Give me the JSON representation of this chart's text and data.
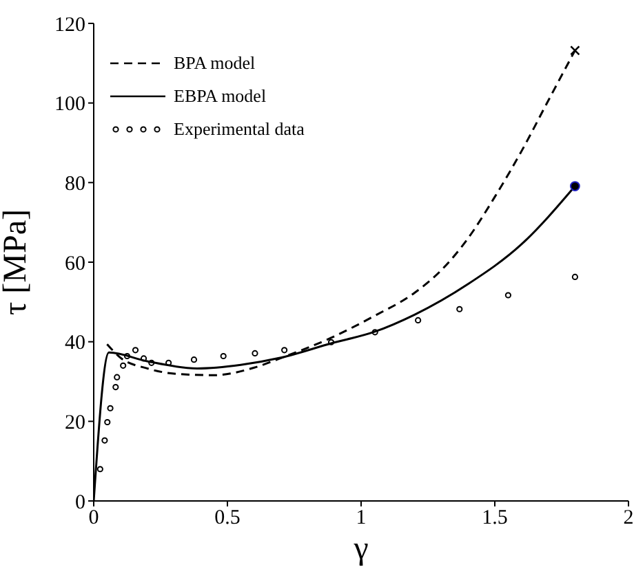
{
  "chart_data": {
    "type": "line",
    "xlabel": "γ",
    "ylabel": "τ [MPa]",
    "xlim": [
      0,
      2
    ],
    "xticks": [
      0,
      0.5,
      1,
      1.5,
      2
    ],
    "ylim": [
      0,
      120
    ],
    "yticks": [
      0,
      20,
      40,
      60,
      80,
      100,
      120
    ],
    "grid": false,
    "legend": "top left",
    "series": [
      {
        "name": "BPA model",
        "line_style": "dashed",
        "marker": "none",
        "color": "#000000",
        "x": [
          0.05,
          0.1,
          0.2,
          0.3,
          0.45,
          0.6,
          0.7,
          0.888,
          1.05,
          1.2,
          1.3,
          1.4,
          1.5,
          1.6,
          1.7,
          1.8
        ],
        "values": [
          39.4,
          36,
          33.3,
          32,
          31.6,
          33.5,
          35.9,
          41,
          46.5,
          52.3,
          58,
          66,
          76.4,
          87.9,
          100.6,
          113.2
        ]
      },
      {
        "type": "scatter",
        "marker": "cross",
        "color": "#000000",
        "x": [
          1.8
        ],
        "values": [
          113.2
        ]
      },
      {
        "name": "EBPA model",
        "line_style": "solid",
        "marker": "none",
        "color": "#000000",
        "x": [
          0,
          0.057,
          0.2,
          0.387,
          0.55,
          0.7,
          0.888,
          1.05,
          1.2,
          1.4,
          1.6,
          1.8
        ],
        "values": [
          0,
          37.3,
          35.1,
          33.3,
          34.2,
          36,
          39.6,
          42.5,
          46.8,
          54.5,
          64.5,
          79.1
        ]
      },
      {
        "type": "scatter",
        "marker": "circle",
        "color": "#000000",
        "x": [
          1.8
        ],
        "values": [
          79.1
        ]
      },
      {
        "name": "Experimental data",
        "type": "scatter",
        "marker": "circle",
        "color": "#000000",
        "x": [
          0.024,
          0.041,
          0.051,
          0.062,
          0.082,
          0.087,
          0.11,
          0.125,
          0.156,
          0.187,
          0.216,
          0.28,
          0.375,
          0.485,
          0.603,
          0.713,
          0.888,
          1.052,
          1.213,
          1.368,
          1.55,
          1.8
        ],
        "values": [
          8,
          15.2,
          19.8,
          23.3,
          28.6,
          31.1,
          34,
          36.4,
          37.9,
          35.8,
          34.7,
          34.7,
          35.5,
          36.4,
          37.1,
          37.9,
          39.9,
          42.4,
          45.4,
          48.2,
          51.7,
          56.3
        ]
      }
    ]
  }
}
